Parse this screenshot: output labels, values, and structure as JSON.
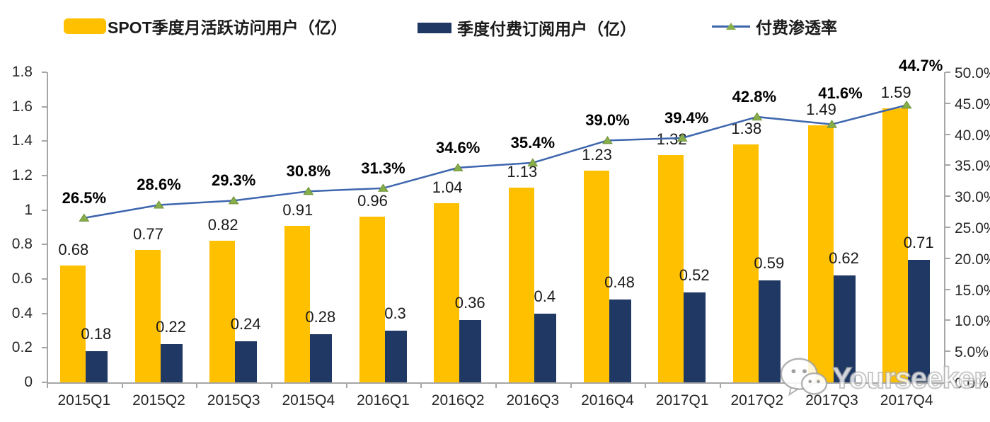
{
  "legend": [
    {
      "label": "SPOT季度月活跃访问用户（亿）",
      "color": "#FFC000",
      "type": "bar"
    },
    {
      "label": "季度付费订阅用户（亿）",
      "color": "#1F3864",
      "type": "bar"
    },
    {
      "label": "付费渗透率",
      "color": "#3E66AE",
      "marker_color": "#87AE4B",
      "type": "line"
    }
  ],
  "chart_data": {
    "type": "bar",
    "categories": [
      "2015Q1",
      "2015Q2",
      "2015Q3",
      "2015Q4",
      "2016Q1",
      "2016Q2",
      "2016Q3",
      "2016Q4",
      "2017Q1",
      "2017Q2",
      "2017Q3",
      "2017Q4"
    ],
    "series": [
      {
        "name": "SPOT季度月活跃访问用户（亿）",
        "type": "bar",
        "color": "#FFC000",
        "values": [
          0.68,
          0.77,
          0.82,
          0.91,
          0.96,
          1.04,
          1.13,
          1.23,
          1.32,
          1.38,
          1.49,
          1.59
        ],
        "labels": [
          "0.68",
          "0.77",
          "0.82",
          "0.91",
          "0.96",
          "1.04",
          "1.13",
          "1.23",
          "1.32",
          "1.38",
          "1.49",
          "1.59"
        ]
      },
      {
        "name": "季度付费订阅用户（亿）",
        "type": "bar",
        "color": "#1F3864",
        "values": [
          0.18,
          0.22,
          0.24,
          0.28,
          0.3,
          0.36,
          0.4,
          0.48,
          0.52,
          0.59,
          0.62,
          0.71
        ],
        "labels": [
          "0.18",
          "0.22",
          "0.24",
          "0.28",
          "0.3",
          "0.36",
          "0.4",
          "0.48",
          "0.52",
          "0.59",
          "0.62",
          "0.71"
        ]
      },
      {
        "name": "付费渗透率",
        "type": "line",
        "color": "#3E66AE",
        "marker_color": "#87AE4B",
        "values": [
          26.5,
          28.6,
          29.3,
          30.8,
          31.3,
          34.6,
          35.4,
          39.0,
          39.4,
          42.8,
          41.6,
          44.7
        ],
        "labels": [
          "26.5%",
          "28.6%",
          "29.3%",
          "30.8%",
          "31.3%",
          "34.6%",
          "35.4%",
          "39.0%",
          "39.4%",
          "42.8%",
          "41.6%",
          "44.7%"
        ]
      }
    ],
    "left_axis": {
      "min": 0,
      "max": 1.8,
      "step": 0.2,
      "ticks": [
        "0",
        "0.2",
        "0.4",
        "0.6",
        "0.8",
        "1",
        "1.2",
        "1.4",
        "1.6",
        "1.8"
      ]
    },
    "right_axis": {
      "min": 0,
      "max": 50,
      "step": 5,
      "ticks": [
        "0.0%",
        "5.0%",
        "10.0%",
        "15.0%",
        "20.0%",
        "25.0%",
        "30.0%",
        "35.0%",
        "40.0%",
        "45.0%",
        "50.0%"
      ]
    },
    "grid": false,
    "legend_position": "top"
  },
  "watermark": {
    "text": "Yourseeker"
  }
}
